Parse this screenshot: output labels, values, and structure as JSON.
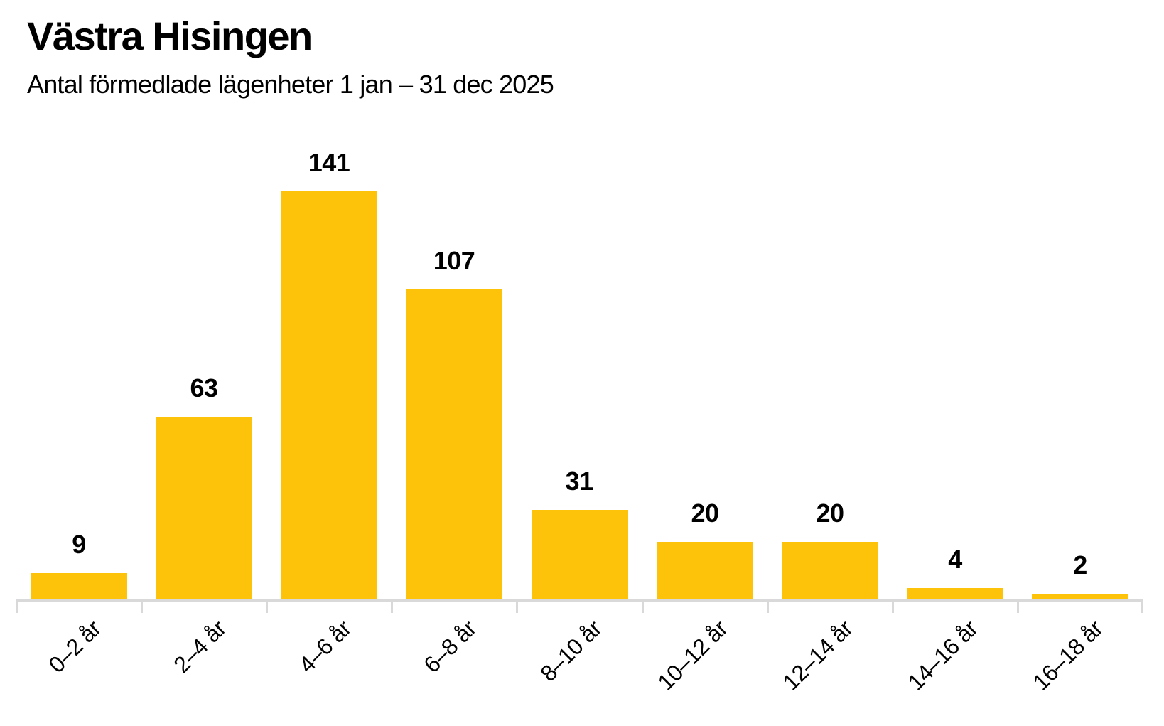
{
  "chart_data": {
    "type": "bar",
    "title": "Västra Hisingen",
    "subtitle": "Antal förmedlade lägenheter 1 jan – 31 dec 2025",
    "categories": [
      "0–2 år",
      "2–4 år",
      "4–6 år",
      "6–8 år",
      "8–10 år",
      "10–12 år",
      "12–14 år",
      "14–16 år",
      "16–18 år"
    ],
    "values": [
      9,
      63,
      141,
      107,
      31,
      20,
      20,
      4,
      2
    ],
    "value_labels_shown": true,
    "xlabel": "",
    "ylabel": "",
    "ylim": [
      0,
      162
    ],
    "grid": false,
    "legend": false,
    "y_axis_shown": false,
    "colors": {
      "bar": "#fdc30a",
      "axis": "#d9d9d9",
      "text": "#000000",
      "background": "#ffffff"
    }
  }
}
